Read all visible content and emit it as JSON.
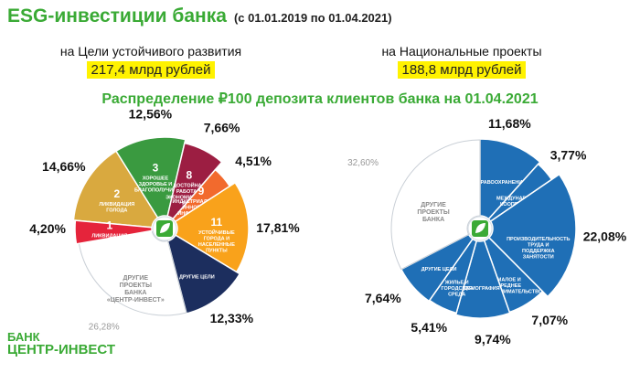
{
  "header": {
    "title": "ESG-инвестиции банка",
    "period": "(с 01.01.2019 по 01.04.2021)"
  },
  "left_summary": {
    "label": "на Цели устойчивого развития",
    "amount": "217,4 млрд рублей"
  },
  "right_summary": {
    "label": "на Национальные проекты",
    "amount": "188,8 млрд рублей"
  },
  "distribution_title": "Распределение ₽100 депозита клиентов банка на 01.04.2021",
  "logo": {
    "line1": "БАНК",
    "line2": "ЦЕНТР-ИНВЕСТ"
  },
  "colors": {
    "brand_green": "#3aaa35",
    "highlight": "#fff200",
    "blue": "#1f6fb6"
  },
  "chart_data": [
    {
      "type": "pie",
      "title": "на Цели устойчивого развития",
      "slices": [
        {
          "label": "2",
          "caption": "ЛИКВИДАЦИЯ ГОЛОДА",
          "value": 14.66,
          "value_label": "14,66%",
          "color": "#d9a93f"
        },
        {
          "label": "3",
          "caption": "ХОРОШЕЕ ЗДОРОВЬЕ И БЛАГОПОЛУЧИЕ",
          "value": 12.56,
          "value_label": "12,56%",
          "color": "#3a9a40"
        },
        {
          "label": "8",
          "caption": "ДОСТОЙНАЯ РАБОТА И ЭКОНОМИЧЕСКИЙ РОСТ",
          "value": 7.66,
          "value_label": "7,66%",
          "color": "#9c1e42"
        },
        {
          "label": "9",
          "caption": "ИНДУСТРИАЛИЗАЦИЯ, ИННОВАЦИИ И ИНФРАСТРУКТУРА",
          "value": 4.51,
          "value_label": "4,51%",
          "color": "#f26a2d"
        },
        {
          "label": "11",
          "caption": "УСТОЙЧИВЫЕ ГОРОДА И НАСЕЛЕННЫЕ ПУНКТЫ",
          "value": 17.81,
          "value_label": "17,81%",
          "color": "#f9a21b"
        },
        {
          "label": "",
          "caption": "ДРУГИЕ ЦЕЛИ",
          "value": 12.33,
          "value_label": "12,33%",
          "color": "#1c2e5e"
        },
        {
          "label": "",
          "caption": "ДРУГИЕ ПРОЕКТЫ БАНКА «ЦЕНТР-ИНВЕСТ»",
          "value": 26.28,
          "value_label": "26,28%",
          "color": "#ffffff"
        },
        {
          "label": "1",
          "caption": "ЛИКВИДАЦИЯ НИЩЕТЫ",
          "value": 4.2,
          "value_label": "4,20%",
          "color": "#e5243b"
        }
      ]
    },
    {
      "type": "pie",
      "title": "на Национальные проекты",
      "slices": [
        {
          "caption": "ЗДРАВООХРАНЕНИЕ",
          "value": 11.68,
          "value_label": "11,68%",
          "color": "#1f6fb6"
        },
        {
          "caption": "МЕЖДУНАРОДНАЯ КООПЕРАЦИЯ И ЭКСПОРТ",
          "value": 3.77,
          "value_label": "3,77%",
          "color": "#1f6fb6"
        },
        {
          "caption": "ПРОИЗВОДИТЕЛЬНОСТЬ ТРУДА И ПОДДЕРЖКА ЗАНЯТОСТИ",
          "value": 22.08,
          "value_label": "22,08%",
          "color": "#1f6fb6"
        },
        {
          "caption": "МАЛОЕ И СРЕДНЕЕ ПРЕДПРИНИМАТЕЛЬСТВО",
          "value": 7.07,
          "value_label": "7,07%",
          "color": "#1f6fb6"
        },
        {
          "caption": "ДЕМОГРАФИЯ",
          "value": 9.74,
          "value_label": "9,74%",
          "color": "#1f6fb6"
        },
        {
          "caption": "ЖИЛЬЕ И ГОРОДСКАЯ СРЕДА",
          "value": 5.41,
          "value_label": "5,41%",
          "color": "#1f6fb6"
        },
        {
          "caption": "ДРУГИЕ ЦЕЛИ",
          "value": 7.64,
          "value_label": "7,64%",
          "color": "#1f6fb6"
        },
        {
          "caption": "ДРУГИЕ ПРОЕКТЫ БАНКА",
          "value": 32.6,
          "value_label": "32,60%",
          "color": "#ffffff"
        }
      ]
    }
  ]
}
